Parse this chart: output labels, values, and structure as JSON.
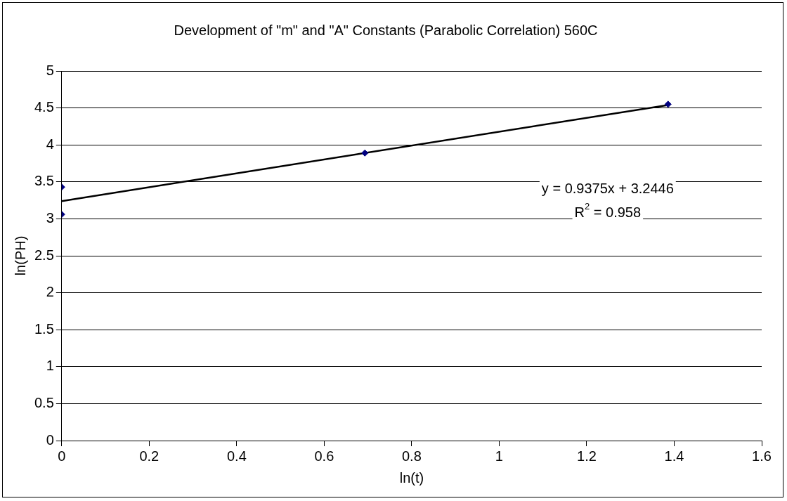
{
  "chart_data": {
    "type": "scatter",
    "title": "Development of \"m\" and \"A\" Constants (Parabolic Correlation) 560C",
    "xlabel": "ln(t)",
    "ylabel": "ln(PH)",
    "series": [
      {
        "color": "#000080",
        "x": [
          0,
          0,
          0.693,
          1.386
        ],
        "values": [
          3.43,
          3.06,
          3.89,
          4.55
        ]
      },
      {
        "type": "line",
        "color": "#000000",
        "x": [
          0,
          1.386
        ],
        "values": [
          3.24,
          4.54
        ],
        "marker": "none"
      }
    ],
    "annotations": [
      "y = 0.9375x + 3.2446",
      "R$^{2}$ = 0.958"
    ],
    "xlim": [
      0,
      1.6
    ],
    "xticks": [
      0,
      0.2,
      0.4,
      0.6,
      0.8,
      1,
      1.2,
      1.4,
      1.6
    ],
    "ylim": [
      0,
      5
    ],
    "yticks": [
      0,
      0.5,
      1,
      1.5,
      2,
      2.5,
      3,
      3.5,
      4,
      4.5,
      5
    ],
    "grid": "y",
    "legend": false,
    "marker": "diamond"
  }
}
